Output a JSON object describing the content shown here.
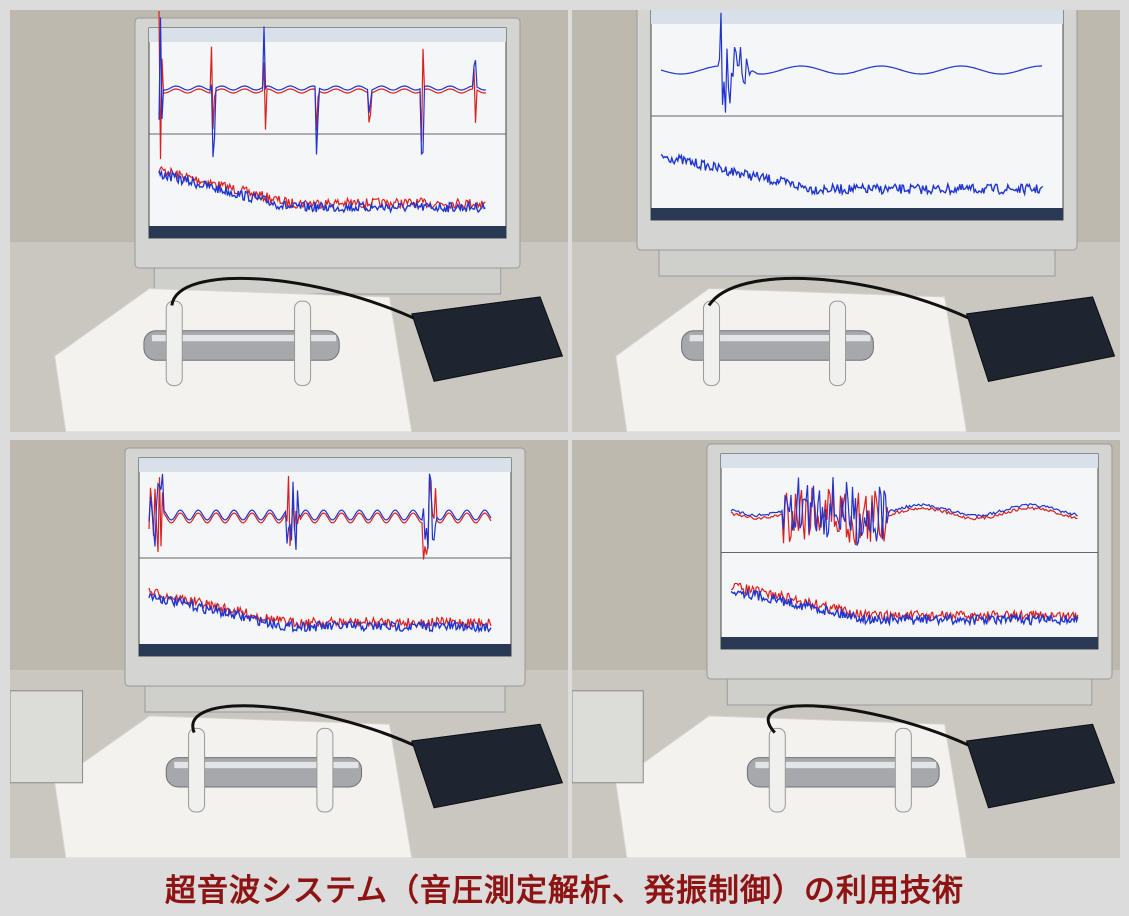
{
  "caption": "超音波システム（音圧測定解析、発振制御）の利用技術"
}
